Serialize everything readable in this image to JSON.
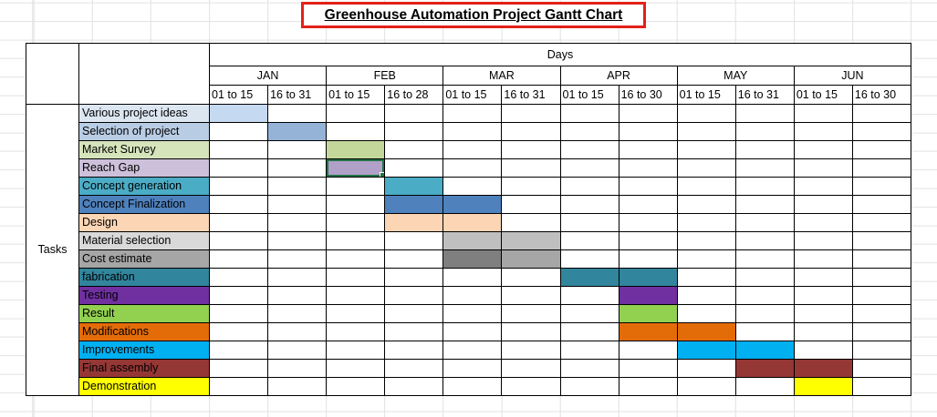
{
  "title": {
    "text": "Greenhouse Automation Project Gantt Chart",
    "border_color": "#e32119"
  },
  "header": {
    "days_label": "Days",
    "corner_label": "Tasks",
    "months": [
      {
        "label": "JAN",
        "periods": [
          "01 to 15",
          "16 to 31"
        ]
      },
      {
        "label": "FEB",
        "periods": [
          "01 to 15",
          "16 to 28"
        ]
      },
      {
        "label": "MAR",
        "periods": [
          "01 to 15",
          "16 to 31"
        ]
      },
      {
        "label": "APR",
        "periods": [
          "01 to 15",
          "16 to 30"
        ]
      },
      {
        "label": "MAY",
        "periods": [
          "01 to 15",
          "16 to 31"
        ]
      },
      {
        "label": "JUN",
        "periods": [
          "01 to 15",
          "16 to 30"
        ]
      }
    ]
  },
  "colors": {
    "grid_border": "#000000",
    "selection_green": "#217346",
    "faint_gridline": "#e1e1e1"
  },
  "chart_data": {
    "type": "gantt",
    "title": "Greenhouse Automation Project Gantt Chart",
    "x_axis_label": "Days",
    "y_axis_label": "Tasks",
    "columns": [
      "JAN 01 to 15",
      "JAN 16 to 31",
      "FEB 01 to 15",
      "FEB 16 to 28",
      "MAR 01 to 15",
      "MAR 16 to 31",
      "APR 01 to 15",
      "APR 16 to 30",
      "MAY 01 to 15",
      "MAY 16 to 31",
      "JUN 01 to 15",
      "JUN 16 to 30"
    ],
    "tasks": [
      {
        "label": "Various project ideas",
        "label_bg": "#dce6f1",
        "bars": [
          {
            "col": 1,
            "color": "#c5d9f1"
          }
        ]
      },
      {
        "label": "Selection of project",
        "label_bg": "#b8cce4",
        "bars": [
          {
            "col": 2,
            "color": "#95b3d7"
          }
        ]
      },
      {
        "label": "Market Survey",
        "label_bg": "#d6e4bc",
        "bars": [
          {
            "col": 3,
            "color": "#c4d79b"
          }
        ]
      },
      {
        "label": "Reach Gap",
        "label_bg": "#ccc0da",
        "bars": [
          {
            "col": 3,
            "color": "#b1a0c7",
            "selected": true
          }
        ]
      },
      {
        "label": "Concept generation",
        "label_bg": "#4bacc6",
        "bars": [
          {
            "col": 4,
            "color": "#4bacc6"
          }
        ]
      },
      {
        "label": "Concept Finalization",
        "label_bg": "#4f81bd",
        "bars": [
          {
            "col": 4,
            "color": "#4f81bd"
          },
          {
            "col": 5,
            "color": "#4f81bd"
          }
        ]
      },
      {
        "label": "Design",
        "label_bg": "#fcd5b4",
        "bars": [
          {
            "col": 4,
            "color": "#fcd5b4"
          },
          {
            "col": 5,
            "color": "#fcd5b4"
          }
        ]
      },
      {
        "label": "Material selection",
        "label_bg": "#d9d9d9",
        "bars": [
          {
            "col": 5,
            "color": "#bfbfbf"
          },
          {
            "col": 6,
            "color": "#bfbfbf"
          }
        ]
      },
      {
        "label": "Cost estimate",
        "label_bg": "#a6a6a6",
        "bars": [
          {
            "col": 5,
            "color": "#7f7f7f"
          },
          {
            "col": 6,
            "color": "#a6a6a6"
          }
        ]
      },
      {
        "label": "fabrication",
        "label_bg": "#31859c",
        "bars": [
          {
            "col": 7,
            "color": "#31859c"
          },
          {
            "col": 8,
            "color": "#31859c"
          }
        ]
      },
      {
        "label": "Testing",
        "label_bg": "#7030a0",
        "bars": [
          {
            "col": 8,
            "color": "#7030a0"
          }
        ]
      },
      {
        "label": "Result",
        "label_bg": "#92d050",
        "bars": [
          {
            "col": 8,
            "color": "#92d050"
          }
        ]
      },
      {
        "label": "Modifications",
        "label_bg": "#e36c09",
        "bars": [
          {
            "col": 8,
            "color": "#e36c09"
          },
          {
            "col": 9,
            "color": "#e36c09"
          }
        ]
      },
      {
        "label": "Improvements",
        "label_bg": "#00b0f0",
        "bars": [
          {
            "col": 9,
            "color": "#00b0f0"
          },
          {
            "col": 10,
            "color": "#00b0f0"
          }
        ]
      },
      {
        "label": "Final assembly",
        "label_bg": "#953735",
        "bars": [
          {
            "col": 10,
            "color": "#953735"
          },
          {
            "col": 11,
            "color": "#953735"
          }
        ]
      },
      {
        "label": "Demonstration",
        "label_bg": "#ffff00",
        "bars": [
          {
            "col": 11,
            "color": "#ffff00"
          }
        ]
      }
    ]
  }
}
